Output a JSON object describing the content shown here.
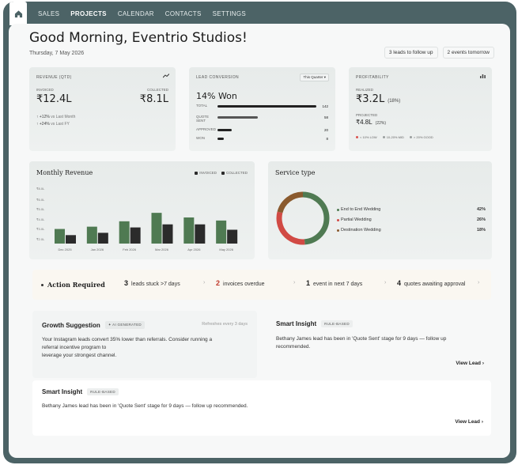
{
  "nav": {
    "items": [
      "SALES",
      "PROJECTS",
      "CALENDAR",
      "CONTACTS",
      "SETTINGS"
    ],
    "active": "PROJECTS"
  },
  "header": {
    "greeting": "Good Morning, Eventrio Studios!",
    "date": "Thursday, 7 May 2026",
    "chip_leads": "3 leads to follow up",
    "chip_events": "2 events tomorrow"
  },
  "revenue": {
    "label": "REVENUE (QTD)",
    "invoiced_label": "INVOICED",
    "invoiced_value": "₹12.4L",
    "collected_label": "COLLECTED",
    "collected_value": "₹8.1L",
    "delta1": "↑ +12%",
    "delta1_note": "vs Last Month",
    "delta2": "↑ +24%",
    "delta2_note": "vs Last FY"
  },
  "conversion": {
    "label": "LEAD CONVERSION",
    "period": "This Quarter ▾",
    "headline": "14% Won",
    "rows": [
      {
        "name": "TOTAL",
        "value": "142",
        "fraction": 1.0
      },
      {
        "name": "QUOTE SENT",
        "value": "58",
        "fraction": 0.41
      },
      {
        "name": "APPROVED",
        "value": "20",
        "fraction": 0.14
      },
      {
        "name": "WON",
        "value": "8",
        "fraction": 0.06
      }
    ]
  },
  "profitability": {
    "label": "PROFITABILITY",
    "realized_label": "REALIZED",
    "realized_value": "₹3.2L",
    "realized_pct": "(18%)",
    "projected_label": "PROJECTED",
    "projected_value": "₹4.8L",
    "projected_pct": "(22%)",
    "legend": [
      {
        "name": "< 10% LOW",
        "color": "#d9534f"
      },
      {
        "name": "10-20% MID",
        "color": "#9a9f9f"
      },
      {
        "name": "> 20% GOOD",
        "color": "#9a9f9f"
      }
    ]
  },
  "monthly_revenue": {
    "title": "Monthly Revenue",
    "legend_invoiced": "INVOICED",
    "legend_collected": "COLLECTED"
  },
  "chart_data": {
    "type": "bar",
    "title": "Monthly Revenue",
    "categories": [
      "Dec 2025",
      "Jan 2026",
      "Feb 2026",
      "Mar 2026",
      "Apr 2026",
      "May 2026"
    ],
    "series": [
      {
        "name": "INVOICED",
        "values": [
          2.9,
          3.2,
          3.9,
          5.0,
          4.4,
          4.0
        ],
        "color": "#4f7a52"
      },
      {
        "name": "COLLECTED",
        "values": [
          2.1,
          2.4,
          3.1,
          3.5,
          3.5,
          2.8
        ],
        "color": "#2b2b2b"
      }
    ],
    "y_ticks": [
      "₹8.0L",
      "₹6.0L",
      "₹5.0L",
      "₹4.0L",
      "₹3.0L",
      "₹2.0L"
    ],
    "ylim": [
      1.0,
      8.0
    ]
  },
  "service_type": {
    "title": "Service type",
    "items": [
      {
        "name": "End to End Wedding",
        "pct": "42%",
        "value": 42,
        "color": "#4f7a52"
      },
      {
        "name": "Partial Wedding",
        "pct": "26%",
        "value": 26,
        "color": "#d14a44"
      },
      {
        "name": "Destination Wedding",
        "pct": "18%",
        "value": 18,
        "color": "#8a5a2e"
      }
    ]
  },
  "action": {
    "title": "Action Required",
    "items": [
      {
        "num": "3",
        "text": "leads stuck >7 days"
      },
      {
        "num": "2",
        "text": "invoices overdue"
      },
      {
        "num": "1",
        "text": "event in next 7 days"
      },
      {
        "num": "4",
        "text": "quotes awaiting approval"
      }
    ]
  },
  "growth": {
    "title": "Growth Suggestion",
    "tag": "✦ AI GENERATED",
    "refresh": "Refreshes every 3 days",
    "body1": "Your Instagram leads convert 35% lower than referrals. Consider running a",
    "body2": "referral incentive program to",
    "body3": "leverage your strongest channel."
  },
  "smart1": {
    "title": "Smart Insight",
    "tag": "RULE-BASED",
    "body1": "Bethany James lead has been in 'Quote Sent' stage for 9 days — follow up",
    "body2": "recommended.",
    "link": "View Lead ›"
  },
  "smart2": {
    "title": "Smart Insight",
    "tag": "RULE-BASED",
    "body": "Bethany James lead has been in 'Quote Sent' stage for 9 days — follow up recommended.",
    "link": "View Lead ›"
  }
}
